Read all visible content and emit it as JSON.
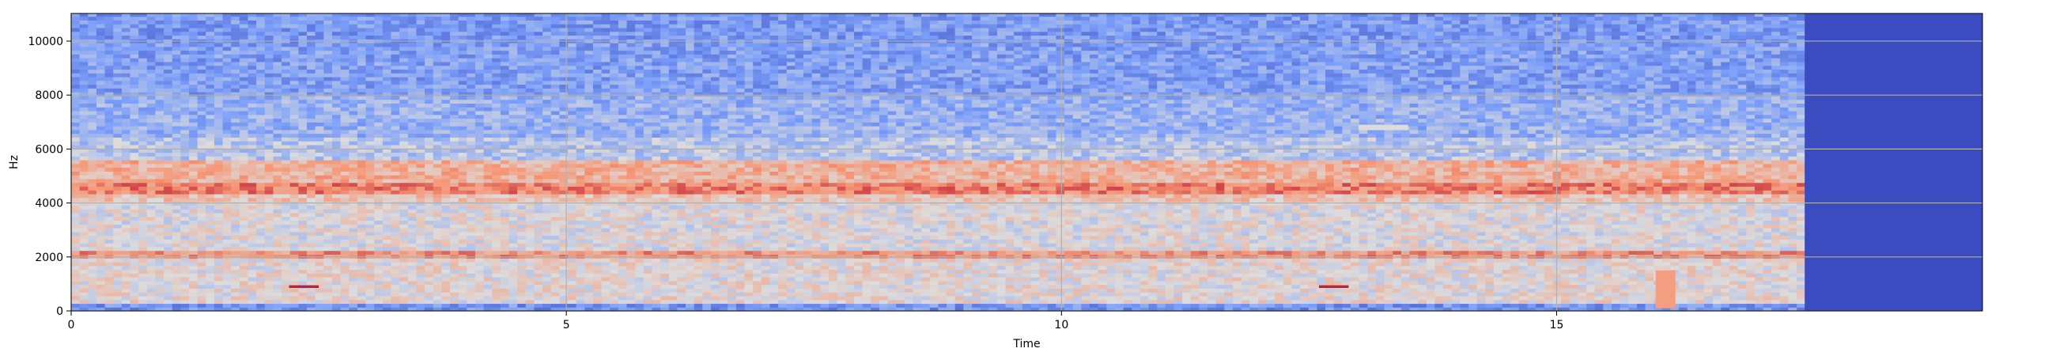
{
  "chart_data": {
    "type": "heatmap",
    "title": "",
    "xlabel": "Time",
    "ylabel": "Hz",
    "xlim": [
      0,
      19.3
    ],
    "ylim": [
      0,
      11025
    ],
    "x_ticks": [
      0,
      5,
      10,
      15
    ],
    "x_tick_labels": [
      "0",
      "5",
      "10",
      "15"
    ],
    "y_ticks": [
      0,
      2000,
      4000,
      6000,
      8000,
      10000
    ],
    "y_tick_labels": [
      "0",
      "2000",
      "4000",
      "6000",
      "8000",
      "10000"
    ],
    "grid": true,
    "colormap": "coolwarm",
    "colors": {
      "background_low": "#3b4cc0",
      "mid": "#dddcdc",
      "high": "#b40426"
    },
    "signal_end_time": 17.5,
    "frequency_bands": [
      {
        "from_hz": 0,
        "to_hz": 350,
        "level": 0.22
      },
      {
        "from_hz": 350,
        "to_hz": 2000,
        "level": 0.52
      },
      {
        "from_hz": 2000,
        "to_hz": 2250,
        "level": 0.74
      },
      {
        "from_hz": 2250,
        "to_hz": 4000,
        "level": 0.5
      },
      {
        "from_hz": 4000,
        "to_hz": 4400,
        "level": 0.6
      },
      {
        "from_hz": 4400,
        "to_hz": 4750,
        "level": 0.78
      },
      {
        "from_hz": 4750,
        "to_hz": 5600,
        "level": 0.66
      },
      {
        "from_hz": 5600,
        "to_hz": 6500,
        "level": 0.4
      },
      {
        "from_hz": 6500,
        "to_hz": 8000,
        "level": 0.32
      },
      {
        "from_hz": 8000,
        "to_hz": 10000,
        "level": 0.26
      },
      {
        "from_hz": 10000,
        "to_hz": 11025,
        "level": 0.24
      }
    ],
    "events": [
      {
        "t_start": 2.2,
        "t_end": 2.5,
        "hz_from": 850,
        "hz_to": 950,
        "level": 0.95
      },
      {
        "t_start": 12.6,
        "t_end": 12.9,
        "hz_from": 850,
        "hz_to": 950,
        "level": 0.95
      },
      {
        "t_start": 16.0,
        "t_end": 16.2,
        "hz_from": 100,
        "hz_to": 1500,
        "level": 0.72
      },
      {
        "t_start": 13.0,
        "t_end": 13.5,
        "hz_from": 6700,
        "hz_to": 6900,
        "level": 0.5
      }
    ]
  }
}
